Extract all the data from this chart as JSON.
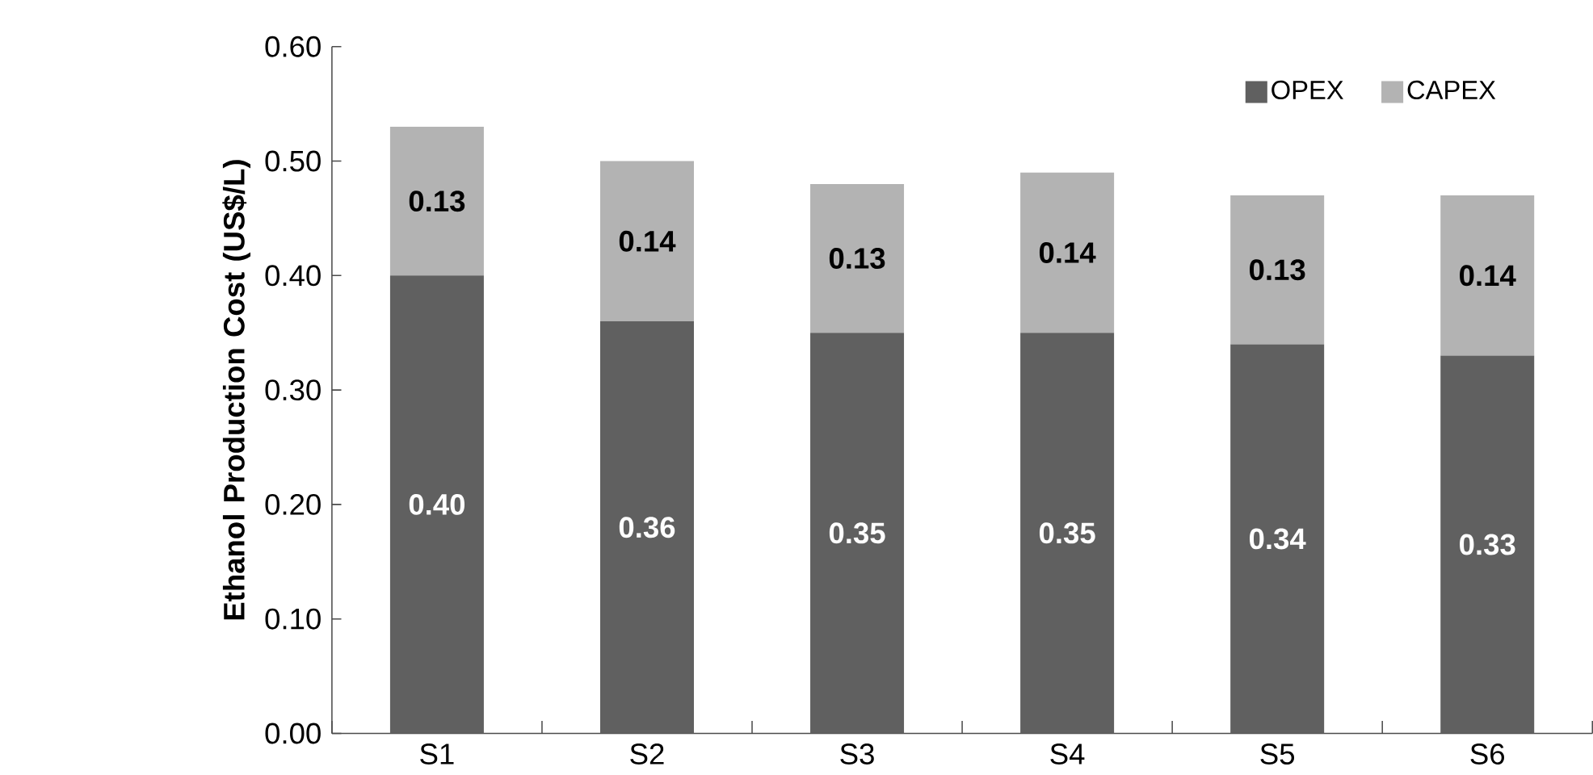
{
  "chart_data": {
    "type": "bar",
    "stacked": true,
    "ylabel": "Ethanol Production Cost (US$/L)",
    "categories": [
      "S1",
      "S2",
      "S3",
      "S4",
      "S5",
      "S6"
    ],
    "series": [
      {
        "name": "OPEX",
        "color": "#606060",
        "values": [
          0.4,
          0.36,
          0.35,
          0.35,
          0.34,
          0.33
        ],
        "value_labels": [
          "0.40",
          "0.36",
          "0.35",
          "0.35",
          "0.34",
          "0.33"
        ]
      },
      {
        "name": "CAPEX",
        "color": "#b3b3b3",
        "values": [
          0.13,
          0.14,
          0.13,
          0.14,
          0.13,
          0.14
        ],
        "value_labels": [
          "0.13",
          "0.14",
          "0.13",
          "0.14",
          "0.13",
          "0.14"
        ]
      }
    ],
    "ylim": [
      0,
      0.6
    ],
    "yticks": [
      {
        "value": 0,
        "label": "0.00"
      },
      {
        "value": 0.1,
        "label": "0.10"
      },
      {
        "value": 0.2,
        "label": "0.20"
      },
      {
        "value": 0.3,
        "label": "0.30"
      },
      {
        "value": 0.4,
        "label": "0.40"
      },
      {
        "value": 0.5,
        "label": "0.50"
      },
      {
        "value": 0.6,
        "label": "0.60"
      }
    ],
    "legend": "top right",
    "grid": false
  }
}
